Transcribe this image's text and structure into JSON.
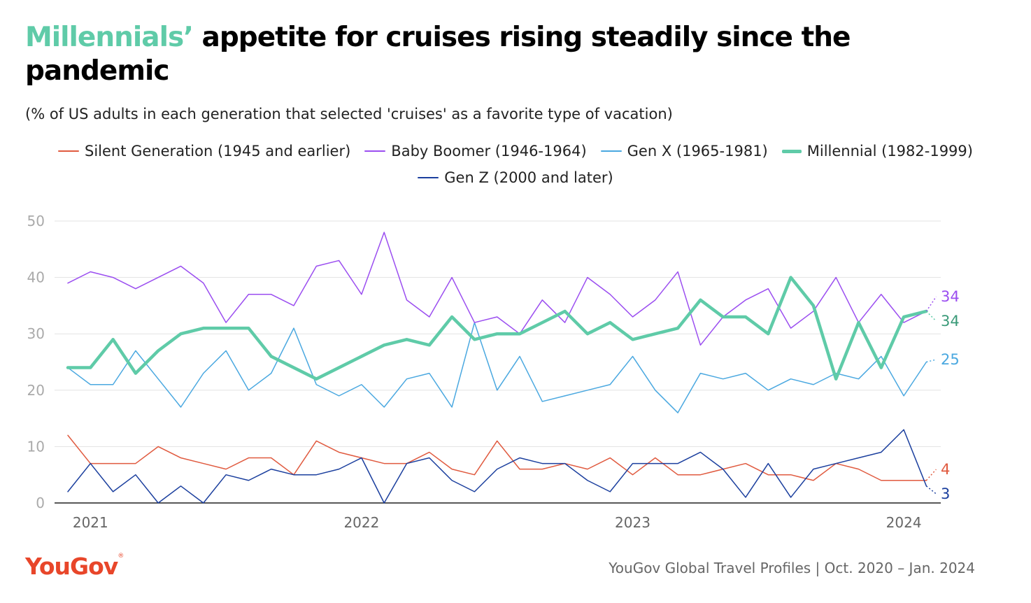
{
  "header": {
    "title_accent": "Millennials’",
    "title_rest": " appetite for cruises rising steadily since the pandemic",
    "subtitle": "(% of US adults in each generation that selected 'cruises' as a favorite type of vacation)"
  },
  "footer": {
    "brand": "YouGov",
    "brand_mark": "®",
    "source": "YouGov Global Travel Profiles | Oct. 2020 – Jan. 2024"
  },
  "chart_data": {
    "type": "line",
    "title": "Millennials’ appetite for cruises rising steadily since the pandemic",
    "ylim": [
      0,
      50
    ],
    "yticks": [
      0,
      10,
      20,
      30,
      40,
      50
    ],
    "grid": true,
    "legend_position": "top",
    "x_tick_labels": [
      {
        "label": "2021",
        "index": 1
      },
      {
        "label": "2022",
        "index": 13
      },
      {
        "label": "2023",
        "index": 25
      },
      {
        "label": "2024",
        "index": 37
      }
    ],
    "series": [
      {
        "name": "Silent Generation (1945 and earlier)",
        "color": "#e05a3f",
        "width": 1.5,
        "end_label": "4",
        "values": [
          12,
          7,
          7,
          7,
          10,
          8,
          7,
          6,
          8,
          8,
          5,
          11,
          9,
          8,
          7,
          7,
          9,
          6,
          5,
          11,
          6,
          6,
          7,
          6,
          8,
          5,
          8,
          5,
          5,
          6,
          7,
          5,
          5,
          4,
          7,
          6,
          4,
          4,
          4
        ]
      },
      {
        "name": "Baby Boomer (1946-1964)",
        "color": "#9b4ef0",
        "width": 1.5,
        "end_label": "34",
        "values": [
          39,
          41,
          40,
          38,
          40,
          42,
          39,
          32,
          37,
          37,
          35,
          42,
          43,
          37,
          48,
          36,
          33,
          40,
          32,
          33,
          30,
          36,
          32,
          40,
          37,
          33,
          36,
          41,
          28,
          33,
          36,
          38,
          31,
          34,
          40,
          32,
          37,
          32,
          34
        ]
      },
      {
        "name": "Gen X (1965-1981)",
        "color": "#4aa8e0",
        "width": 1.5,
        "end_label": "25",
        "values": [
          24,
          21,
          21,
          27,
          22,
          17,
          23,
          27,
          20,
          23,
          31,
          21,
          19,
          21,
          17,
          22,
          23,
          17,
          32,
          20,
          26,
          18,
          19,
          20,
          21,
          26,
          20,
          16,
          23,
          22,
          23,
          20,
          22,
          21,
          23,
          22,
          26,
          19,
          25
        ]
      },
      {
        "name": "Millennial (1982-1999)",
        "color": "#5fcba8",
        "width": 4.5,
        "end_label": "34",
        "values": [
          24,
          24,
          29,
          23,
          27,
          30,
          31,
          31,
          31,
          26,
          24,
          22,
          24,
          26,
          28,
          29,
          28,
          33,
          29,
          30,
          30,
          32,
          34,
          30,
          32,
          29,
          30,
          31,
          36,
          33,
          33,
          30,
          40,
          35,
          22,
          32,
          24,
          33,
          34
        ]
      },
      {
        "name": "Gen Z (2000 and later)",
        "color": "#1b3f9e",
        "width": 1.5,
        "end_label": "3",
        "values": [
          2,
          7,
          2,
          5,
          0,
          3,
          0,
          5,
          4,
          6,
          5,
          5,
          6,
          8,
          0,
          7,
          8,
          4,
          2,
          6,
          8,
          7,
          7,
          4,
          2,
          7,
          7,
          7,
          9,
          6,
          1,
          7,
          1,
          6,
          7,
          8,
          9,
          13,
          3
        ]
      }
    ]
  }
}
